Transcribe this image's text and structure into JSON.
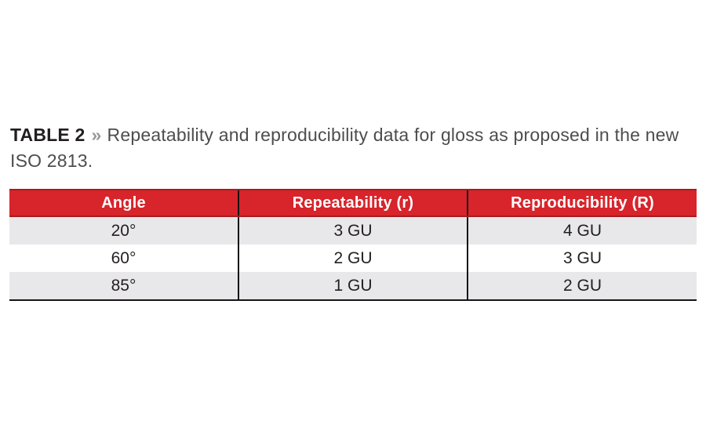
{
  "caption": {
    "label": "TABLE 2",
    "chevron": "»",
    "text": "Repeatability and reproducibility data for gloss as proposed in the new ISO 2813."
  },
  "table": {
    "columns": [
      "Angle",
      "Repeatability (r)",
      "Reproducibility (R)"
    ],
    "rows": [
      [
        "20°",
        "3 GU",
        "4 GU"
      ],
      [
        "60°",
        "2 GU",
        "3 GU"
      ],
      [
        "85°",
        "1 GU",
        "2 GU"
      ]
    ]
  },
  "chart_data": {
    "type": "table",
    "title": "TABLE 2 » Repeatability and reproducibility data for gloss as proposed in the new ISO 2813.",
    "columns": [
      "Angle",
      "Repeatability (r)",
      "Reproducibility (R)"
    ],
    "rows": [
      [
        "20°",
        "3 GU",
        "4 GU"
      ],
      [
        "60°",
        "2 GU",
        "3 GU"
      ],
      [
        "85°",
        "1 GU",
        "2 GU"
      ]
    ]
  },
  "colors": {
    "page_bg": "#FFFFFF",
    "header_bg": "#D8242B",
    "header_border": "#A81B20",
    "header_text": "#FFFFFF",
    "row_stripe_bg": "#E8E7E9",
    "row_plain_bg": "#FFFFFF",
    "grid_line": "#161414",
    "caption_label": "#221E1F",
    "caption_text": "#4D4D4F",
    "caption_chevron": "#98989C",
    "cell_text": "#231F20"
  }
}
